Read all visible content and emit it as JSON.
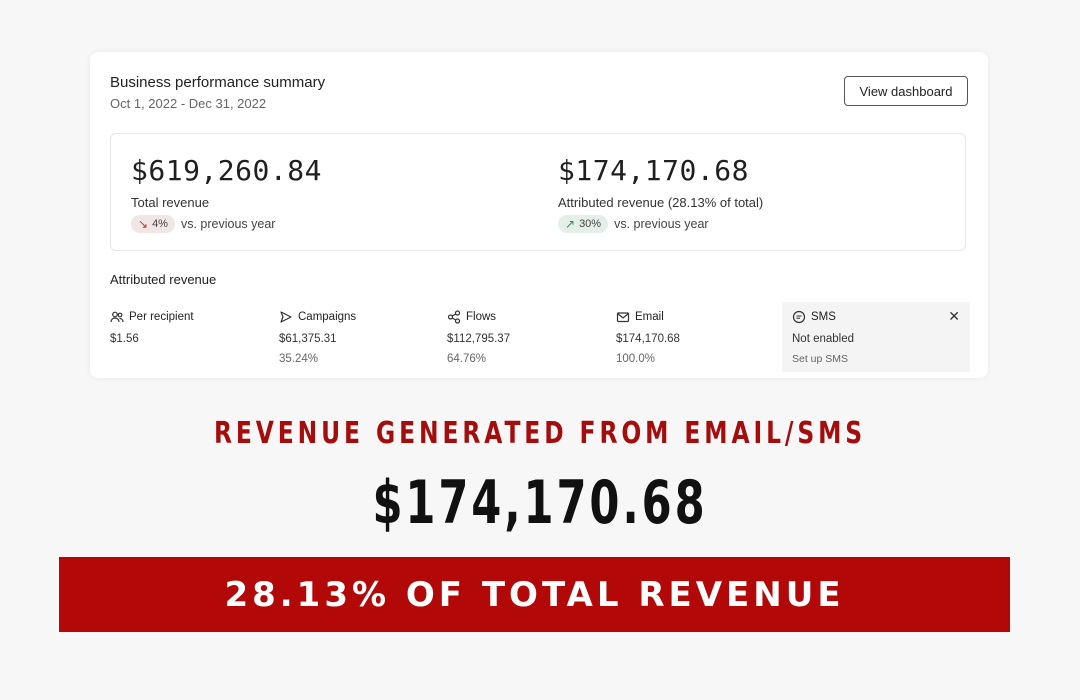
{
  "card": {
    "title": "Business performance summary",
    "date_range": "Oct 1, 2022 - Dec 31, 2022",
    "view_button": "View dashboard"
  },
  "summary": {
    "total": {
      "value": "$619,260.84",
      "label": "Total revenue",
      "change_pct": "4%",
      "change_direction": "down",
      "change_text": "vs. previous year"
    },
    "attributed": {
      "value": "$174,170.68",
      "label": "Attributed revenue (28.13% of total)",
      "change_pct": "30%",
      "change_direction": "up",
      "change_text": "vs. previous year"
    }
  },
  "attributed_section": {
    "title": "Attributed revenue",
    "columns": [
      {
        "icon": "people-icon",
        "label": "Per recipient",
        "value": "$1.56",
        "percent": ""
      },
      {
        "icon": "send-icon",
        "label": "Campaigns",
        "value": "$61,375.31",
        "percent": "35.24%"
      },
      {
        "icon": "flow-icon",
        "label": "Flows",
        "value": "$112,795.37",
        "percent": "64.76%"
      },
      {
        "icon": "envelope-icon",
        "label": "Email",
        "value": "$174,170.68",
        "percent": "100.0%"
      },
      {
        "icon": "sms-icon",
        "label": "SMS",
        "value": "Not enabled",
        "link": "Set up SMS"
      }
    ]
  },
  "overlay": {
    "headline": "REVENUE GENERATED FROM EMAIL/SMS",
    "big_number": "$174,170.68",
    "banner": "28.13% OF TOTAL REVENUE"
  },
  "colors": {
    "accent_red": "#b30808",
    "headline_red": "#a50d0d",
    "link_blue": "#3b7dd8",
    "down_red": "#c0392b",
    "up_green": "#2e8b57"
  }
}
